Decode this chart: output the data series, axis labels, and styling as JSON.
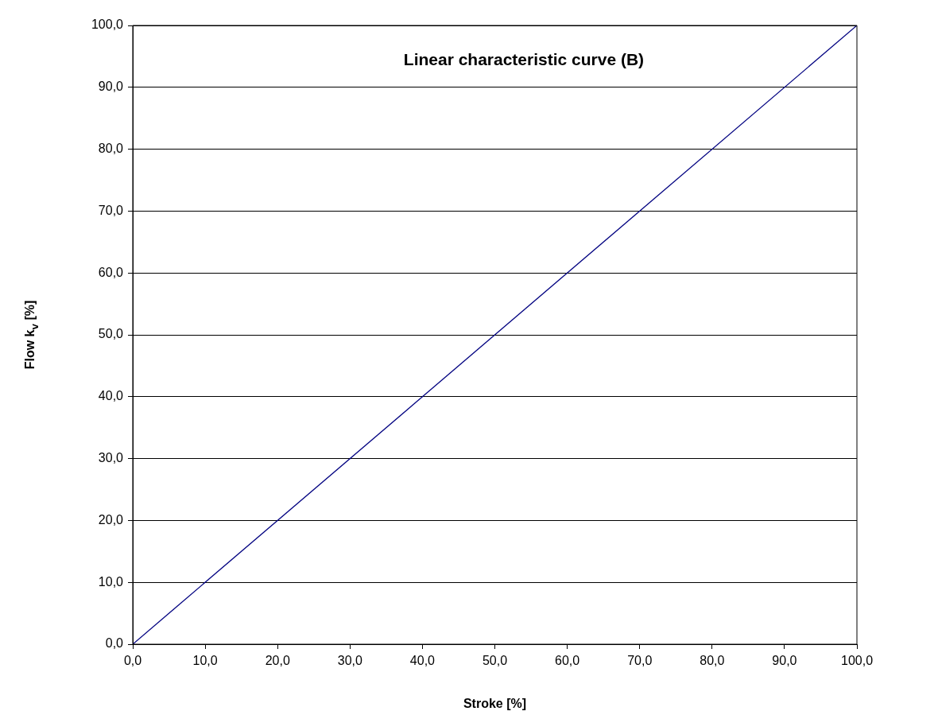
{
  "chart_data": {
    "type": "line",
    "title": "Linear characteristic curve (B)",
    "xlabel": "Stroke [%]",
    "ylabel": "Flow k$_{v}$ [%]",
    "x": [
      0,
      100
    ],
    "series": [
      {
        "color": "#000080",
        "values": [
          0,
          100
        ]
      }
    ],
    "xlim": [
      0,
      100
    ],
    "ylim": [
      0,
      100
    ],
    "xticks": [
      {
        "value": 0,
        "label": "0,0"
      },
      {
        "value": 10,
        "label": "10,0"
      },
      {
        "value": 20,
        "label": "20,0"
      },
      {
        "value": 30,
        "label": "30,0"
      },
      {
        "value": 40,
        "label": "40,0"
      },
      {
        "value": 50,
        "label": "50,0"
      },
      {
        "value": 60,
        "label": "60,0"
      },
      {
        "value": 70,
        "label": "70,0"
      },
      {
        "value": 80,
        "label": "80,0"
      },
      {
        "value": 90,
        "label": "90,0"
      },
      {
        "value": 100,
        "label": "100,0"
      }
    ],
    "yticks": [
      {
        "value": 0,
        "label": "0,0"
      },
      {
        "value": 10,
        "label": "10,0"
      },
      {
        "value": 20,
        "label": "20,0"
      },
      {
        "value": 30,
        "label": "30,0"
      },
      {
        "value": 40,
        "label": "40,0"
      },
      {
        "value": 50,
        "label": "50,0"
      },
      {
        "value": 60,
        "label": "60,0"
      },
      {
        "value": 70,
        "label": "70,0"
      },
      {
        "value": 80,
        "label": "80,0"
      },
      {
        "value": 90,
        "label": "90,0"
      },
      {
        "value": 100,
        "label": "100,0"
      }
    ],
    "grid": "y",
    "legend": false,
    "marker": "none",
    "line_style": "solid"
  }
}
